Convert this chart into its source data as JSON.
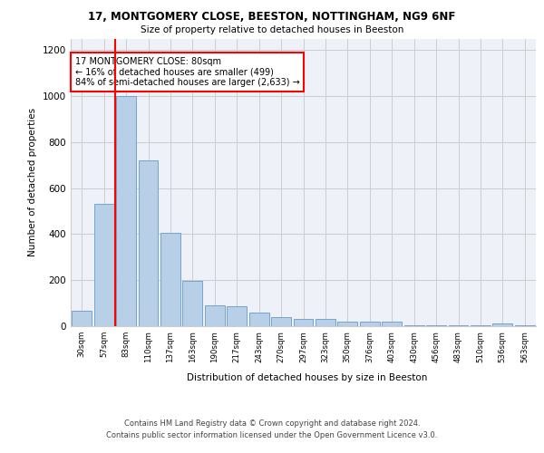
{
  "title1": "17, MONTGOMERY CLOSE, BEESTON, NOTTINGHAM, NG9 6NF",
  "title2": "Size of property relative to detached houses in Beeston",
  "xlabel": "Distribution of detached houses by size in Beeston",
  "ylabel": "Number of detached properties",
  "bar_labels": [
    "30sqm",
    "57sqm",
    "83sqm",
    "110sqm",
    "137sqm",
    "163sqm",
    "190sqm",
    "217sqm",
    "243sqm",
    "270sqm",
    "297sqm",
    "323sqm",
    "350sqm",
    "376sqm",
    "403sqm",
    "430sqm",
    "456sqm",
    "483sqm",
    "510sqm",
    "536sqm",
    "563sqm"
  ],
  "bar_values": [
    65,
    530,
    1000,
    720,
    405,
    198,
    90,
    88,
    58,
    40,
    33,
    30,
    18,
    20,
    18,
    3,
    3,
    3,
    3,
    12,
    3
  ],
  "bar_color": "#b8cfe8",
  "bar_edge_color": "#6699cc",
  "annotation_text": "17 MONTGOMERY CLOSE: 80sqm\n← 16% of detached houses are smaller (499)\n84% of semi-detached houses are larger (2,633) →",
  "annotation_box_color": "white",
  "annotation_box_edge": "red",
  "vline_color": "red",
  "vline_x_idx": 2,
  "ylim": [
    0,
    1250
  ],
  "yticks": [
    0,
    200,
    400,
    600,
    800,
    1000,
    1200
  ],
  "grid_color": "#cccccc",
  "bg_color": "#eef2f8",
  "footer1": "Contains HM Land Registry data © Crown copyright and database right 2024.",
  "footer2": "Contains public sector information licensed under the Open Government Licence v3.0."
}
